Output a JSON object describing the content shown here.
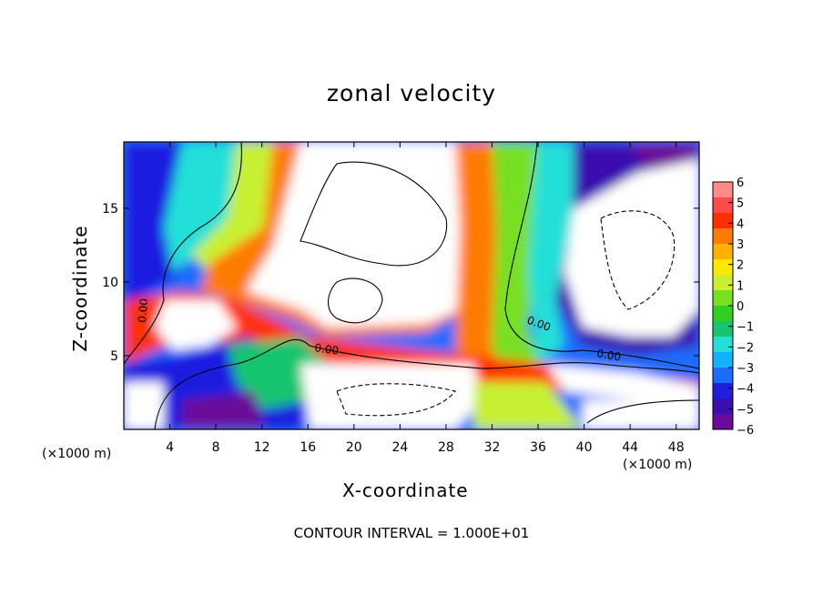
{
  "chart_data": {
    "type": "heatmap",
    "title": "zonal velocity",
    "xlabel": "X-coordinate",
    "ylabel": "Z-coordinate",
    "x_unit": "(×1000 m)",
    "x_unit_right": "(×1000 m)",
    "xlim": [
      0,
      50
    ],
    "ylim": [
      0,
      19.5
    ],
    "x_ticks": [
      4,
      8,
      12,
      16,
      20,
      24,
      28,
      32,
      36,
      40,
      44,
      48
    ],
    "y_ticks": [
      5,
      10,
      15
    ],
    "colorbar": {
      "ticks": [
        6,
        5,
        4,
        3,
        2,
        1,
        0,
        -1,
        -2,
        -3,
        -4,
        -5,
        -6
      ],
      "min": -6,
      "max": 6,
      "colors": [
        "#6a0a9a",
        "#3a10b0",
        "#1f1fe0",
        "#1e6cff",
        "#12b2ff",
        "#22e0d8",
        "#18c470",
        "#30d020",
        "#78e020",
        "#c8f030",
        "#ffe800",
        "#ffb000",
        "#ff7a00",
        "#ff3000",
        "#ff4a4a",
        "#ff8a8a"
      ]
    },
    "contour_labels": [
      "0.00",
      "0.00",
      "0.00",
      "0.00"
    ],
    "contour_interval_text": "CONTOUR INTERVAL = 1.000E+01"
  }
}
